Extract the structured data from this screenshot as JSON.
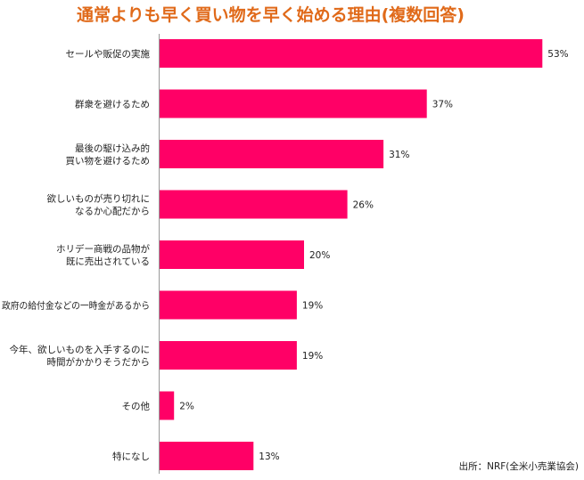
{
  "title": "通常よりも早く買い物を早く始める理由(複数回答)",
  "source": "出所：NRF(全米小売業協会)",
  "colors": {
    "bar": "#ff0066",
    "axis": "#999999",
    "title": "#e06a1a"
  },
  "chart_data": {
    "type": "bar",
    "orientation": "horizontal",
    "categories": [
      [
        "セールや販促の実施"
      ],
      [
        "群衆を避けるため"
      ],
      [
        "最後の駆け込み的",
        "買い物を避けるため"
      ],
      [
        "欲しいものが売り切れに",
        "なるか心配だから"
      ],
      [
        "ホリデー商戦の品物が",
        "既に売出されている"
      ],
      [
        "政府の給付金などの一時金があるから"
      ],
      [
        "今年、欲しいものを入手するのに",
        "時間がかかりそうだから"
      ],
      [
        "その他"
      ],
      [
        "特になし"
      ]
    ],
    "values": [
      53,
      37,
      31,
      26,
      20,
      19,
      19,
      2,
      13
    ],
    "value_suffix": "%",
    "grid": false
  }
}
